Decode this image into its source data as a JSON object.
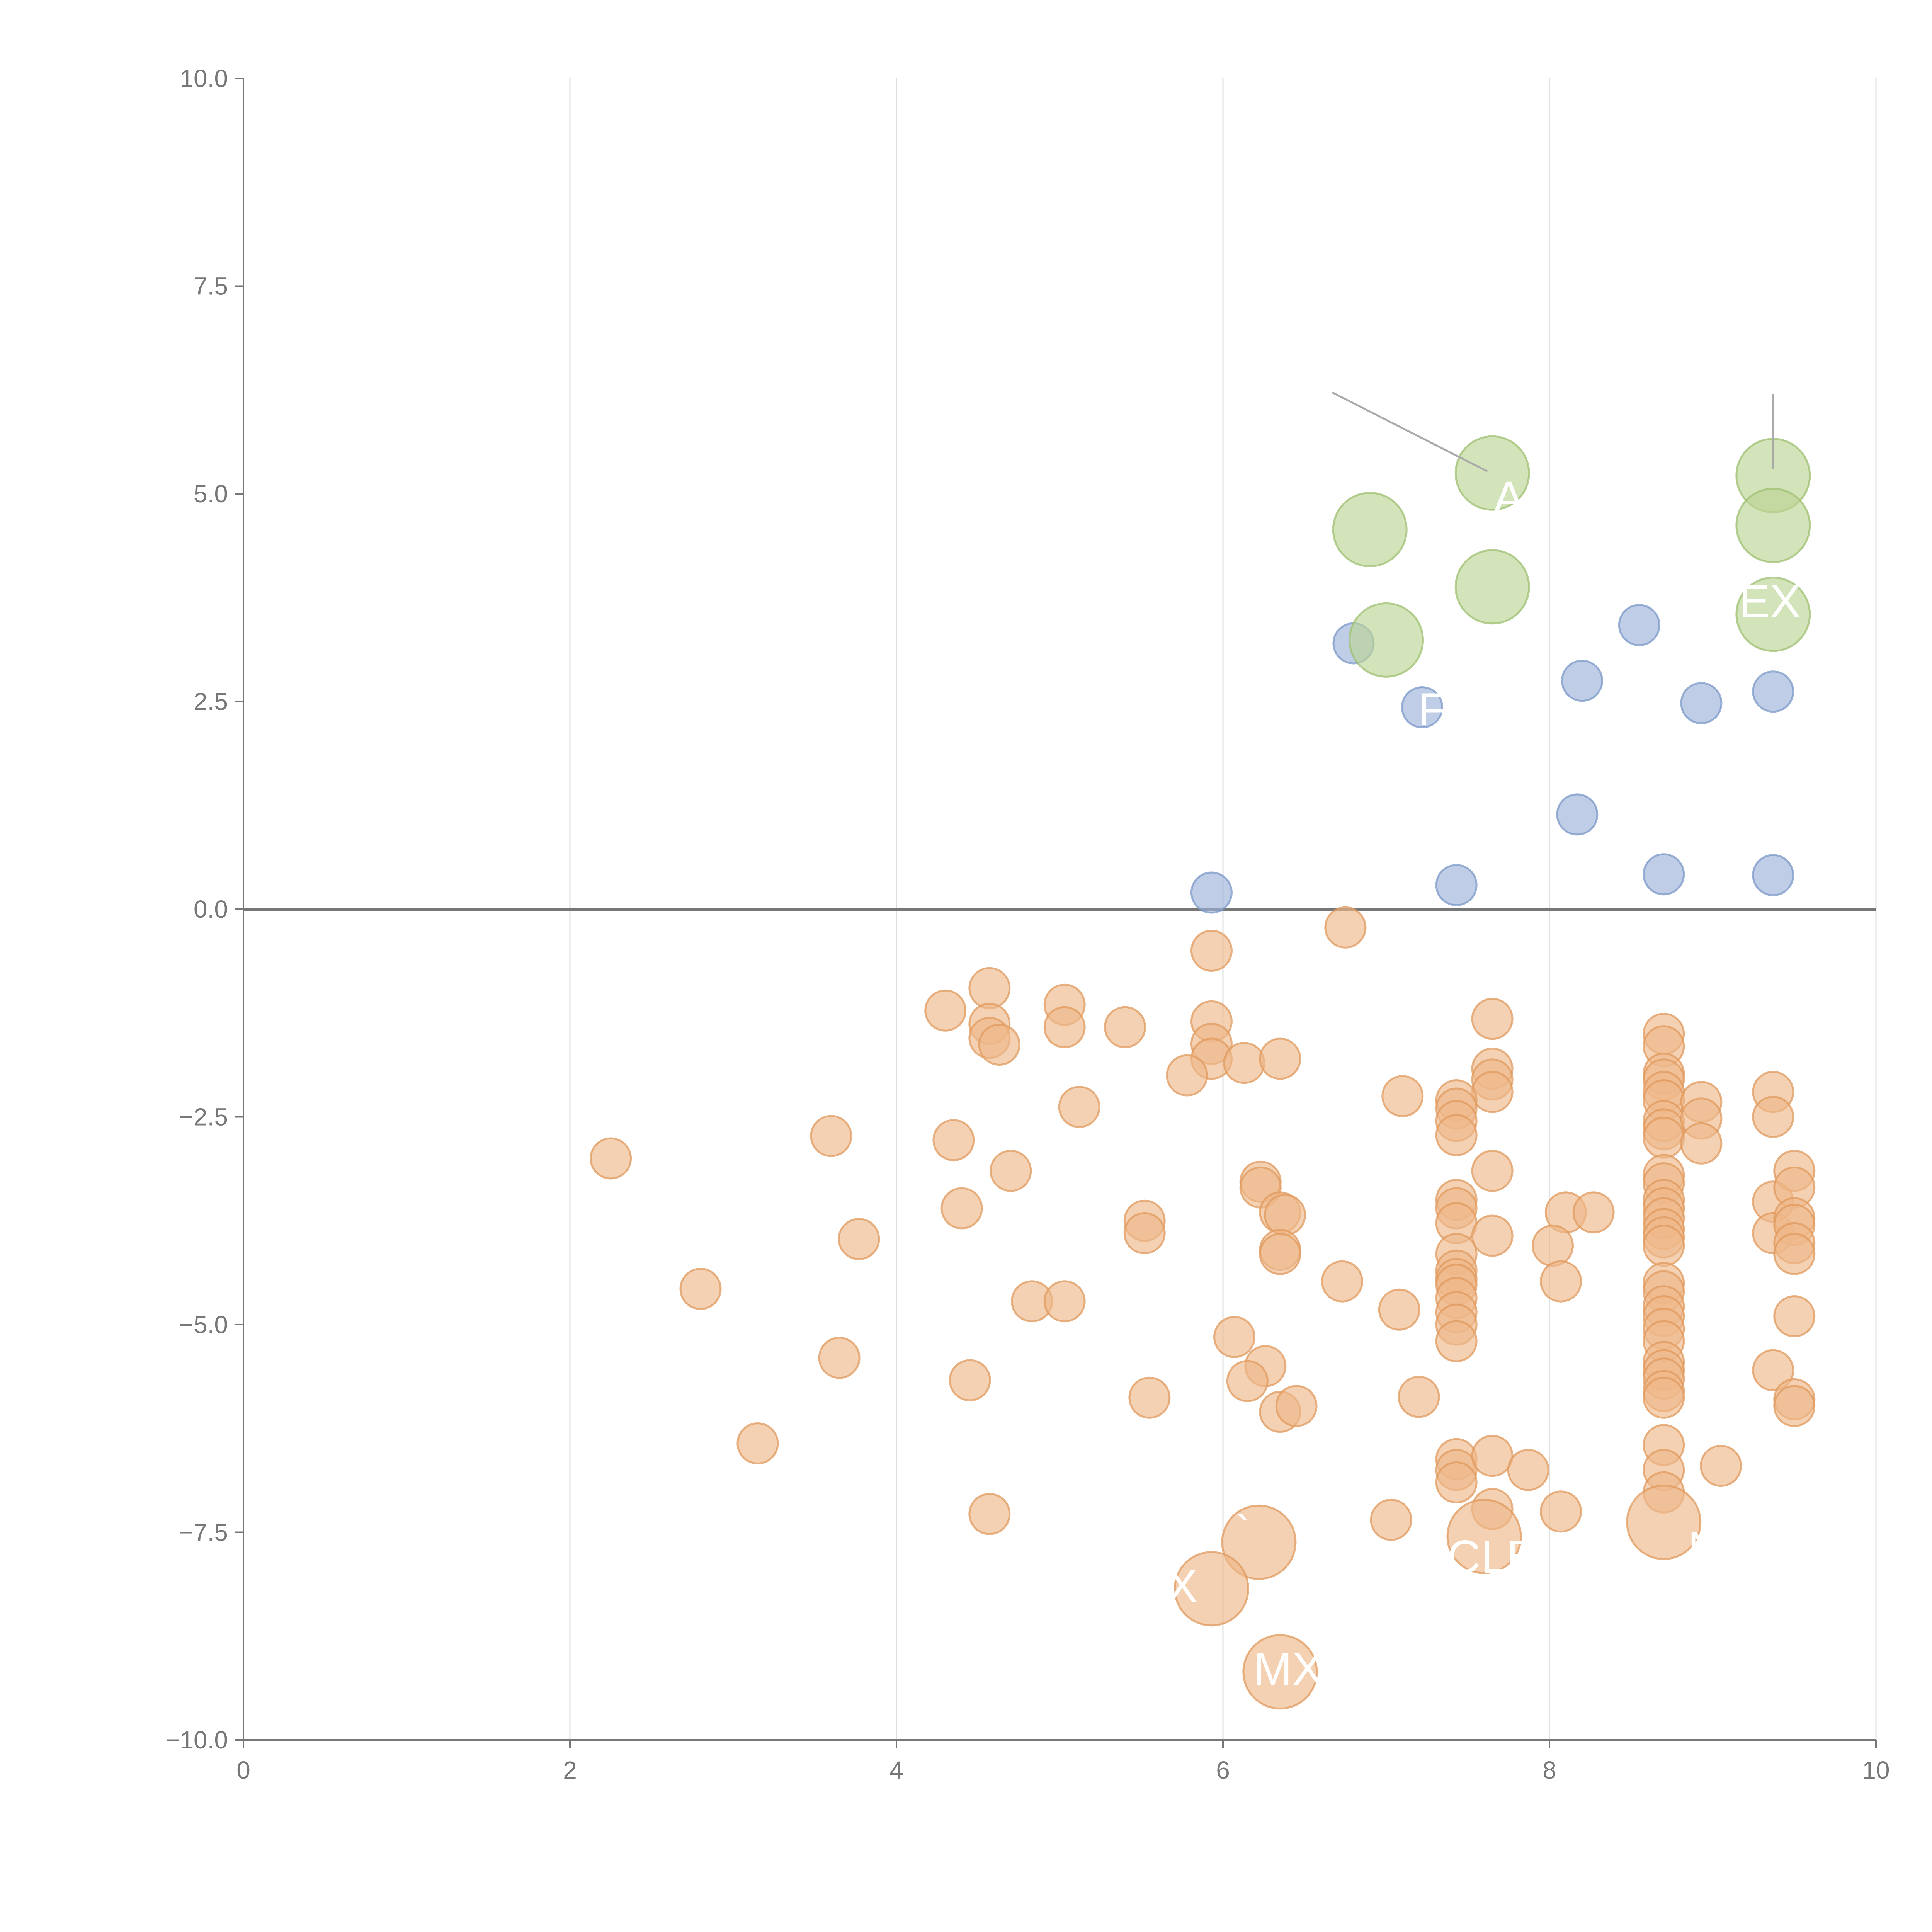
{
  "chart_data": {
    "type": "scatter",
    "title": "",
    "xlabel": "",
    "ylabel": "",
    "xlim": [
      0,
      10
    ],
    "ylim": [
      -10,
      10
    ],
    "grid": {
      "x": true,
      "y": false
    },
    "reference_line_y": 0,
    "x_ticks": [
      "0",
      "2",
      "4",
      "6",
      "8",
      "10"
    ],
    "y_ticks": [
      "10.0",
      "7.5",
      "5.0",
      "2.5",
      "0.0",
      "−2.5",
      "−5.0",
      "−7.5",
      "−10.0"
    ],
    "series": [
      {
        "name": "blue",
        "color": "#9db4d8",
        "stroke": "#7b98c8",
        "size": "small",
        "points": [
          {
            "x": 6.8,
            "y": 3.2
          },
          {
            "x": 7.22,
            "y": 2.43
          },
          {
            "x": 8.55,
            "y": 3.42
          },
          {
            "x": 8.2,
            "y": 2.75
          },
          {
            "x": 8.93,
            "y": 2.48
          },
          {
            "x": 9.37,
            "y": 2.62
          },
          {
            "x": 8.17,
            "y": 1.14
          },
          {
            "x": 5.93,
            "y": 0.2
          },
          {
            "x": 7.43,
            "y": 0.29
          },
          {
            "x": 8.7,
            "y": 0.42
          },
          {
            "x": 9.37,
            "y": 0.41
          }
        ]
      },
      {
        "name": "green",
        "color": "#bcd495",
        "stroke": "#9fc071",
        "size": "large",
        "points": [
          {
            "x": 7.65,
            "y": 5.25
          },
          {
            "x": 6.9,
            "y": 4.57
          },
          {
            "x": 7.65,
            "y": 3.88
          },
          {
            "x": 7.0,
            "y": 3.24
          },
          {
            "x": 9.37,
            "y": 5.22
          },
          {
            "x": 9.37,
            "y": 4.62
          },
          {
            "x": 9.37,
            "y": 3.55
          }
        ]
      },
      {
        "name": "orange",
        "color": "#eeb98b",
        "stroke": "#e0995e",
        "size": "small",
        "points": [
          {
            "x": 6.75,
            "y": -0.22
          },
          {
            "x": 5.93,
            "y": -0.5
          },
          {
            "x": 4.57,
            "y": -0.95
          },
          {
            "x": 4.3,
            "y": -1.22
          },
          {
            "x": 4.57,
            "y": -1.38
          },
          {
            "x": 4.57,
            "y": -1.55
          },
          {
            "x": 4.63,
            "y": -1.63
          },
          {
            "x": 5.03,
            "y": -1.15
          },
          {
            "x": 5.03,
            "y": -1.42
          },
          {
            "x": 5.4,
            "y": -1.42
          },
          {
            "x": 5.93,
            "y": -1.35
          },
          {
            "x": 5.93,
            "y": -1.62
          },
          {
            "x": 5.93,
            "y": -1.8
          },
          {
            "x": 6.13,
            "y": -1.85
          },
          {
            "x": 6.35,
            "y": -1.8
          },
          {
            "x": 5.78,
            "y": -2.0
          },
          {
            "x": 5.12,
            "y": -2.38
          },
          {
            "x": 7.1,
            "y": -2.25
          },
          {
            "x": 7.65,
            "y": -1.32
          },
          {
            "x": 7.65,
            "y": -1.92
          },
          {
            "x": 7.65,
            "y": -2.05
          },
          {
            "x": 7.65,
            "y": -2.2
          },
          {
            "x": 7.43,
            "y": -2.3
          },
          {
            "x": 7.43,
            "y": -2.4
          },
          {
            "x": 7.43,
            "y": -2.55
          },
          {
            "x": 7.43,
            "y": -2.72
          },
          {
            "x": 3.6,
            "y": -2.73
          },
          {
            "x": 4.35,
            "y": -2.78
          },
          {
            "x": 2.25,
            "y": -3.0
          },
          {
            "x": 4.7,
            "y": -3.15
          },
          {
            "x": 7.65,
            "y": -3.15
          },
          {
            "x": 6.23,
            "y": -3.28
          },
          {
            "x": 6.23,
            "y": -3.35
          },
          {
            "x": 6.35,
            "y": -3.65
          },
          {
            "x": 6.38,
            "y": -3.68
          },
          {
            "x": 4.4,
            "y": -3.6
          },
          {
            "x": 5.52,
            "y": -3.75
          },
          {
            "x": 5.52,
            "y": -3.9
          },
          {
            "x": 3.77,
            "y": -3.97
          },
          {
            "x": 6.35,
            "y": -4.1
          },
          {
            "x": 6.35,
            "y": -4.15
          },
          {
            "x": 7.43,
            "y": -3.5
          },
          {
            "x": 7.43,
            "y": -3.6
          },
          {
            "x": 7.43,
            "y": -3.78
          },
          {
            "x": 7.65,
            "y": -3.93
          },
          {
            "x": 8.1,
            "y": -3.65
          },
          {
            "x": 8.27,
            "y": -3.65
          },
          {
            "x": 8.02,
            "y": -4.05
          },
          {
            "x": 8.07,
            "y": -4.48
          },
          {
            "x": 7.43,
            "y": -4.15
          },
          {
            "x": 7.43,
            "y": -4.35
          },
          {
            "x": 7.43,
            "y": -4.45
          },
          {
            "x": 7.43,
            "y": -4.52
          },
          {
            "x": 7.43,
            "y": -4.68
          },
          {
            "x": 7.43,
            "y": -4.85
          },
          {
            "x": 7.43,
            "y": -5.0
          },
          {
            "x": 7.43,
            "y": -5.2
          },
          {
            "x": 6.73,
            "y": -4.48
          },
          {
            "x": 7.08,
            "y": -4.82
          },
          {
            "x": 2.8,
            "y": -4.57
          },
          {
            "x": 4.83,
            "y": -4.72
          },
          {
            "x": 5.03,
            "y": -4.72
          },
          {
            "x": 6.07,
            "y": -5.15
          },
          {
            "x": 3.65,
            "y": -5.4
          },
          {
            "x": 6.26,
            "y": -5.5
          },
          {
            "x": 4.45,
            "y": -5.67
          },
          {
            "x": 6.15,
            "y": -5.68
          },
          {
            "x": 5.55,
            "y": -5.88
          },
          {
            "x": 6.35,
            "y": -6.05
          },
          {
            "x": 6.45,
            "y": -5.98
          },
          {
            "x": 7.2,
            "y": -5.87
          },
          {
            "x": 3.15,
            "y": -6.43
          },
          {
            "x": 7.43,
            "y": -6.62
          },
          {
            "x": 7.43,
            "y": -6.75
          },
          {
            "x": 7.43,
            "y": -6.9
          },
          {
            "x": 7.65,
            "y": -6.58
          },
          {
            "x": 7.87,
            "y": -6.75
          },
          {
            "x": 4.57,
            "y": -7.28
          },
          {
            "x": 7.03,
            "y": -7.35
          },
          {
            "x": 7.65,
            "y": -7.22
          },
          {
            "x": 8.07,
            "y": -7.25
          },
          {
            "x": 9.05,
            "y": -6.7
          },
          {
            "x": 8.7,
            "y": -1.5
          },
          {
            "x": 8.7,
            "y": -1.65
          },
          {
            "x": 8.7,
            "y": -1.98
          },
          {
            "x": 8.7,
            "y": -2.05
          },
          {
            "x": 8.7,
            "y": -2.2
          },
          {
            "x": 8.7,
            "y": -2.3
          },
          {
            "x": 8.7,
            "y": -2.55
          },
          {
            "x": 8.7,
            "y": -2.65
          },
          {
            "x": 8.7,
            "y": -2.75
          },
          {
            "x": 8.7,
            "y": -3.2
          },
          {
            "x": 8.7,
            "y": -3.3
          },
          {
            "x": 8.7,
            "y": -3.5
          },
          {
            "x": 8.7,
            "y": -3.6
          },
          {
            "x": 8.7,
            "y": -3.72
          },
          {
            "x": 8.7,
            "y": -3.85
          },
          {
            "x": 8.7,
            "y": -3.95
          },
          {
            "x": 8.7,
            "y": -4.05
          },
          {
            "x": 8.7,
            "y": -4.5
          },
          {
            "x": 8.7,
            "y": -4.6
          },
          {
            "x": 8.7,
            "y": -4.78
          },
          {
            "x": 8.7,
            "y": -4.9
          },
          {
            "x": 8.7,
            "y": -5.05
          },
          {
            "x": 8.7,
            "y": -5.2
          },
          {
            "x": 8.7,
            "y": -5.45
          },
          {
            "x": 8.7,
            "y": -5.55
          },
          {
            "x": 8.7,
            "y": -5.65
          },
          {
            "x": 8.7,
            "y": -5.8
          },
          {
            "x": 8.7,
            "y": -5.88
          },
          {
            "x": 8.7,
            "y": -6.45
          },
          {
            "x": 8.7,
            "y": -6.75
          },
          {
            "x": 8.7,
            "y": -7.02
          },
          {
            "x": 8.93,
            "y": -2.32
          },
          {
            "x": 8.93,
            "y": -2.52
          },
          {
            "x": 8.93,
            "y": -2.82
          },
          {
            "x": 9.37,
            "y": -2.2
          },
          {
            "x": 9.37,
            "y": -2.5
          },
          {
            "x": 9.37,
            "y": -3.52
          },
          {
            "x": 9.37,
            "y": -3.9
          },
          {
            "x": 9.37,
            "y": -5.55
          },
          {
            "x": 9.5,
            "y": -3.15
          },
          {
            "x": 9.5,
            "y": -3.35
          },
          {
            "x": 9.5,
            "y": -3.72
          },
          {
            "x": 9.5,
            "y": -3.8
          },
          {
            "x": 9.5,
            "y": -4.02
          },
          {
            "x": 9.5,
            "y": -4.15
          },
          {
            "x": 9.5,
            "y": -4.9
          },
          {
            "x": 9.5,
            "y": -5.9
          },
          {
            "x": 9.5,
            "y": -5.98
          }
        ]
      },
      {
        "name": "orange-large",
        "color": "#eeb98b",
        "stroke": "#e0995e",
        "size": "large",
        "points": [
          {
            "x": 6.22,
            "y": -7.62
          },
          {
            "x": 7.6,
            "y": -7.55
          },
          {
            "x": 8.7,
            "y": -7.38
          },
          {
            "x": 5.93,
            "y": -8.18
          },
          {
            "x": 6.35,
            "y": -9.18
          }
        ]
      }
    ],
    "annotations": [
      {
        "text": "A",
        "x": 7.75,
        "y": 4.95
      },
      {
        "text": "EX",
        "x": 9.35,
        "y": 3.7
      },
      {
        "text": "F",
        "x": 7.28,
        "y": 2.4
      },
      {
        "text": "X",
        "x": 5.75,
        "y": -8.15
      },
      {
        "text": "MX",
        "x": 6.4,
        "y": -9.15
      },
      {
        "text": "N",
        "x": 8.95,
        "y": -7.7
      },
      {
        "text": "CLE",
        "x": 7.65,
        "y": -7.8
      },
      {
        "text": "`",
        "x": 6.12,
        "y": -7.5
      }
    ],
    "leader_lines": [
      {
        "x1": 6.67,
        "y1": 6.22,
        "x2": 7.62,
        "y2": 5.27
      },
      {
        "x1": 9.37,
        "y1": 6.2,
        "x2": 9.37,
        "y2": 5.3
      }
    ]
  }
}
